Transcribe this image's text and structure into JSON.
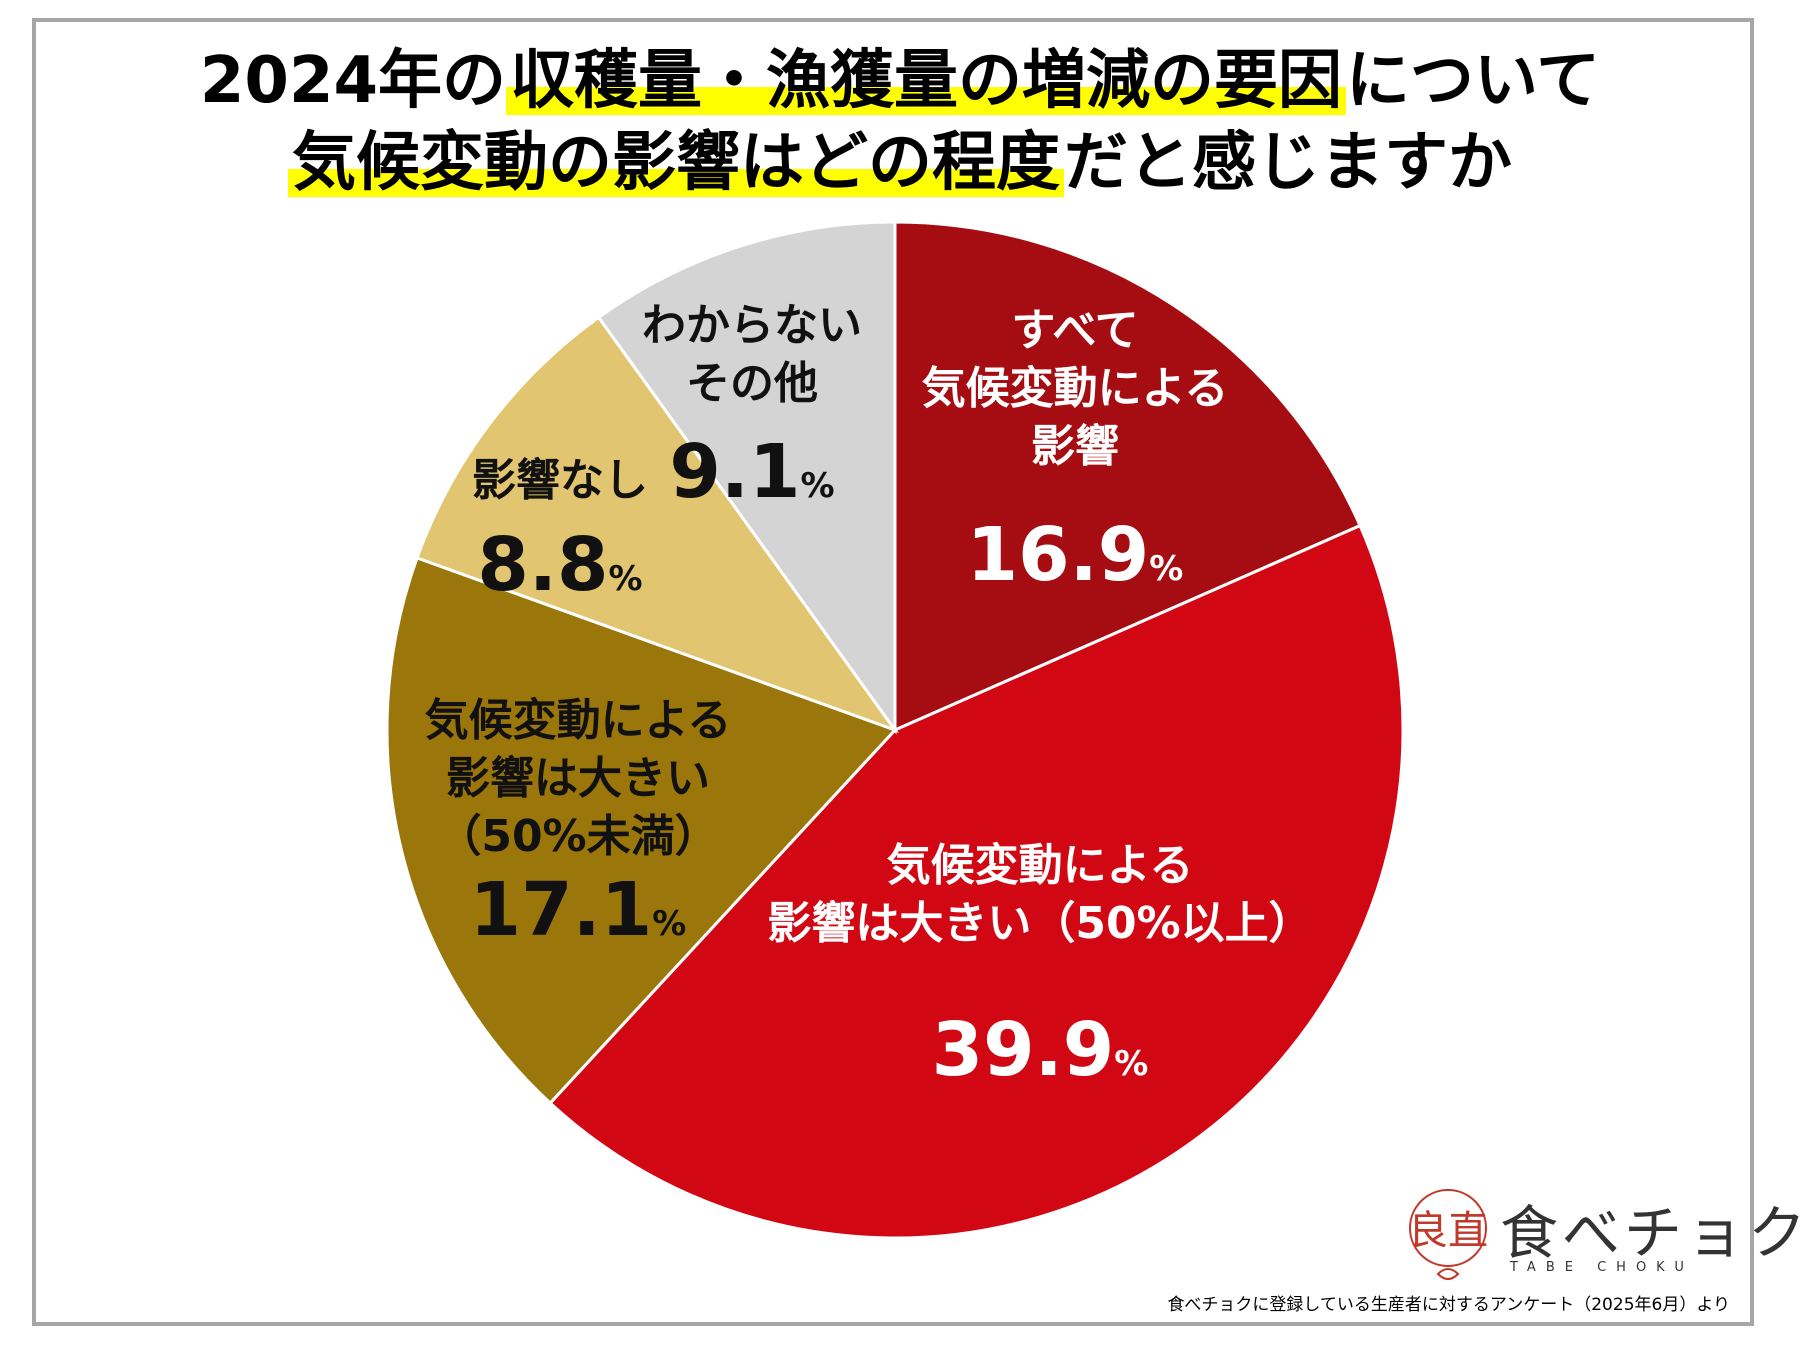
{
  "title": {
    "line1_prefix": "2024年の",
    "line1_highlight": "収穫量・漁獲量の増減の要因",
    "line1_suffix": "について",
    "line2_highlight": "気候変動の影響はどの程度",
    "line2_suffix": "だと感じますか"
  },
  "chart_data": {
    "type": "pie",
    "title": "2024年の 収穫量・漁獲量の増減の要因について 気候変動の影響はどの程度だと感じますか",
    "start_angle_deg": 0,
    "direction": "clockwise",
    "unit": "%",
    "slices": [
      {
        "label_lines": [
          "すべて",
          "気候変動による",
          "影響"
        ],
        "value": 16.9,
        "display": "16.9",
        "color": "#a50d12",
        "text_color": "#ffffff"
      },
      {
        "label_lines": [
          "気候変動による",
          "影響は大きい（50%以上）"
        ],
        "value": 39.9,
        "display": "39.9",
        "color": "#d10814",
        "text_color": "#ffffff"
      },
      {
        "label_lines": [
          "気候変動による",
          "影響は大きい",
          "（50%未満）"
        ],
        "value": 17.1,
        "display": "17.1",
        "color": "#9b760b",
        "text_color": "#111111"
      },
      {
        "label_lines": [
          "影響なし"
        ],
        "value": 8.8,
        "display": "8.8",
        "color": "#e1c570",
        "text_color": "#111111"
      },
      {
        "label_lines": [
          "わからない",
          "その他"
        ],
        "value": 9.1,
        "display": "9.1",
        "color": "#d4d4d4",
        "text_color": "#111111"
      }
    ]
  },
  "logo": {
    "mark_text": "良直",
    "name": "食べチョク",
    "sub": "TABE CHOKU"
  },
  "source": "食べチョクに登録している生産者に対するアンケート（2025年6月）より",
  "colors": {
    "highlight": "#ffff00",
    "frame": "#a6a6a6",
    "logo_mark": "#c0392b"
  }
}
